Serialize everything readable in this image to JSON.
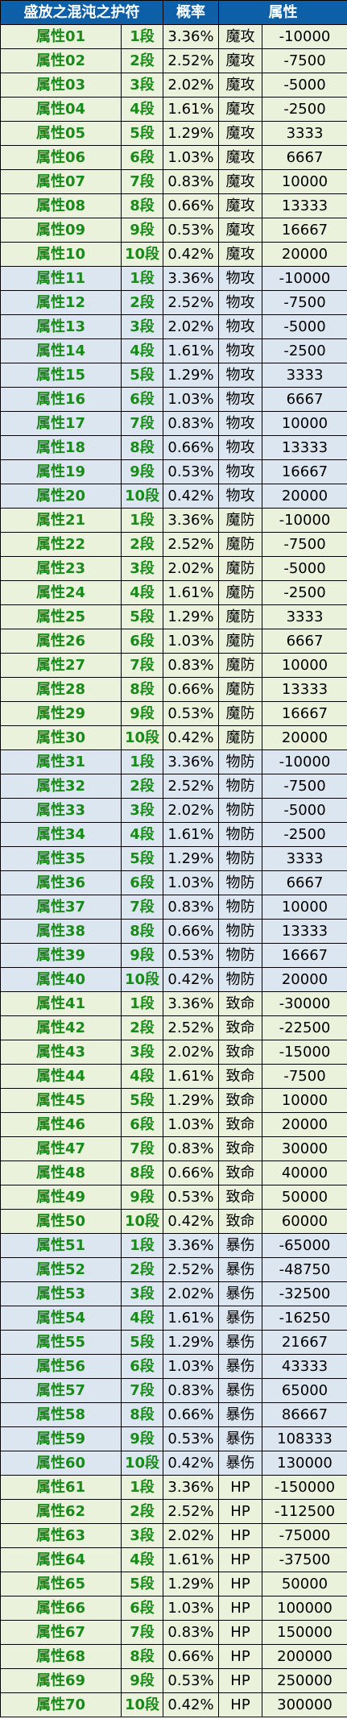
{
  "header": {
    "col_name": "盛放之混沌之护符",
    "col_prob": "概率",
    "col_attr": "属性"
  },
  "rows": [
    {
      "name": "属性01",
      "stage": "1段",
      "prob": "3.36%",
      "type": "魔攻",
      "value": "-10000"
    },
    {
      "name": "属性02",
      "stage": "2段",
      "prob": "2.52%",
      "type": "魔攻",
      "value": "-7500"
    },
    {
      "name": "属性03",
      "stage": "3段",
      "prob": "2.02%",
      "type": "魔攻",
      "value": "-5000"
    },
    {
      "name": "属性04",
      "stage": "4段",
      "prob": "1.61%",
      "type": "魔攻",
      "value": "-2500"
    },
    {
      "name": "属性05",
      "stage": "5段",
      "prob": "1.29%",
      "type": "魔攻",
      "value": "3333"
    },
    {
      "name": "属性06",
      "stage": "6段",
      "prob": "1.03%",
      "type": "魔攻",
      "value": "6667"
    },
    {
      "name": "属性07",
      "stage": "7段",
      "prob": "0.83%",
      "type": "魔攻",
      "value": "10000"
    },
    {
      "name": "属性08",
      "stage": "8段",
      "prob": "0.66%",
      "type": "魔攻",
      "value": "13333"
    },
    {
      "name": "属性09",
      "stage": "9段",
      "prob": "0.53%",
      "type": "魔攻",
      "value": "16667"
    },
    {
      "name": "属性10",
      "stage": "10段",
      "prob": "0.42%",
      "type": "魔攻",
      "value": "20000"
    },
    {
      "name": "属性11",
      "stage": "1段",
      "prob": "3.36%",
      "type": "物攻",
      "value": "-10000"
    },
    {
      "name": "属性12",
      "stage": "2段",
      "prob": "2.52%",
      "type": "物攻",
      "value": "-7500"
    },
    {
      "name": "属性13",
      "stage": "3段",
      "prob": "2.02%",
      "type": "物攻",
      "value": "-5000"
    },
    {
      "name": "属性14",
      "stage": "4段",
      "prob": "1.61%",
      "type": "物攻",
      "value": "-2500"
    },
    {
      "name": "属性15",
      "stage": "5段",
      "prob": "1.29%",
      "type": "物攻",
      "value": "3333"
    },
    {
      "name": "属性16",
      "stage": "6段",
      "prob": "1.03%",
      "type": "物攻",
      "value": "6667"
    },
    {
      "name": "属性17",
      "stage": "7段",
      "prob": "0.83%",
      "type": "物攻",
      "value": "10000"
    },
    {
      "name": "属性18",
      "stage": "8段",
      "prob": "0.66%",
      "type": "物攻",
      "value": "13333"
    },
    {
      "name": "属性19",
      "stage": "9段",
      "prob": "0.53%",
      "type": "物攻",
      "value": "16667"
    },
    {
      "name": "属性20",
      "stage": "10段",
      "prob": "0.42%",
      "type": "物攻",
      "value": "20000"
    },
    {
      "name": "属性21",
      "stage": "1段",
      "prob": "3.36%",
      "type": "魔防",
      "value": "-10000"
    },
    {
      "name": "属性22",
      "stage": "2段",
      "prob": "2.52%",
      "type": "魔防",
      "value": "-7500"
    },
    {
      "name": "属性23",
      "stage": "3段",
      "prob": "2.02%",
      "type": "魔防",
      "value": "-5000"
    },
    {
      "name": "属性24",
      "stage": "4段",
      "prob": "1.61%",
      "type": "魔防",
      "value": "-2500"
    },
    {
      "name": "属性25",
      "stage": "5段",
      "prob": "1.29%",
      "type": "魔防",
      "value": "3333"
    },
    {
      "name": "属性26",
      "stage": "6段",
      "prob": "1.03%",
      "type": "魔防",
      "value": "6667"
    },
    {
      "name": "属性27",
      "stage": "7段",
      "prob": "0.83%",
      "type": "魔防",
      "value": "10000"
    },
    {
      "name": "属性28",
      "stage": "8段",
      "prob": "0.66%",
      "type": "魔防",
      "value": "13333"
    },
    {
      "name": "属性29",
      "stage": "9段",
      "prob": "0.53%",
      "type": "魔防",
      "value": "16667"
    },
    {
      "name": "属性30",
      "stage": "10段",
      "prob": "0.42%",
      "type": "魔防",
      "value": "20000"
    },
    {
      "name": "属性31",
      "stage": "1段",
      "prob": "3.36%",
      "type": "物防",
      "value": "-10000"
    },
    {
      "name": "属性32",
      "stage": "2段",
      "prob": "2.52%",
      "type": "物防",
      "value": "-7500"
    },
    {
      "name": "属性33",
      "stage": "3段",
      "prob": "2.02%",
      "type": "物防",
      "value": "-5000"
    },
    {
      "name": "属性34",
      "stage": "4段",
      "prob": "1.61%",
      "type": "物防",
      "value": "-2500"
    },
    {
      "name": "属性35",
      "stage": "5段",
      "prob": "1.29%",
      "type": "物防",
      "value": "3333"
    },
    {
      "name": "属性36",
      "stage": "6段",
      "prob": "1.03%",
      "type": "物防",
      "value": "6667"
    },
    {
      "name": "属性37",
      "stage": "7段",
      "prob": "0.83%",
      "type": "物防",
      "value": "10000"
    },
    {
      "name": "属性38",
      "stage": "8段",
      "prob": "0.66%",
      "type": "物防",
      "value": "13333"
    },
    {
      "name": "属性39",
      "stage": "9段",
      "prob": "0.53%",
      "type": "物防",
      "value": "16667"
    },
    {
      "name": "属性40",
      "stage": "10段",
      "prob": "0.42%",
      "type": "物防",
      "value": "20000"
    },
    {
      "name": "属性41",
      "stage": "1段",
      "prob": "3.36%",
      "type": "致命",
      "value": "-30000"
    },
    {
      "name": "属性42",
      "stage": "2段",
      "prob": "2.52%",
      "type": "致命",
      "value": "-22500"
    },
    {
      "name": "属性43",
      "stage": "3段",
      "prob": "2.02%",
      "type": "致命",
      "value": "-15000"
    },
    {
      "name": "属性44",
      "stage": "4段",
      "prob": "1.61%",
      "type": "致命",
      "value": "-7500"
    },
    {
      "name": "属性45",
      "stage": "5段",
      "prob": "1.29%",
      "type": "致命",
      "value": "10000"
    },
    {
      "name": "属性46",
      "stage": "6段",
      "prob": "1.03%",
      "type": "致命",
      "value": "20000"
    },
    {
      "name": "属性47",
      "stage": "7段",
      "prob": "0.83%",
      "type": "致命",
      "value": "30000"
    },
    {
      "name": "属性48",
      "stage": "8段",
      "prob": "0.66%",
      "type": "致命",
      "value": "40000"
    },
    {
      "name": "属性49",
      "stage": "9段",
      "prob": "0.53%",
      "type": "致命",
      "value": "50000"
    },
    {
      "name": "属性50",
      "stage": "10段",
      "prob": "0.42%",
      "type": "致命",
      "value": "60000"
    },
    {
      "name": "属性51",
      "stage": "1段",
      "prob": "3.36%",
      "type": "暴伤",
      "value": "-65000"
    },
    {
      "name": "属性52",
      "stage": "2段",
      "prob": "2.52%",
      "type": "暴伤",
      "value": "-48750"
    },
    {
      "name": "属性53",
      "stage": "3段",
      "prob": "2.02%",
      "type": "暴伤",
      "value": "-32500"
    },
    {
      "name": "属性54",
      "stage": "4段",
      "prob": "1.61%",
      "type": "暴伤",
      "value": "-16250"
    },
    {
      "name": "属性55",
      "stage": "5段",
      "prob": "1.29%",
      "type": "暴伤",
      "value": "21667"
    },
    {
      "name": "属性56",
      "stage": "6段",
      "prob": "1.03%",
      "type": "暴伤",
      "value": "43333"
    },
    {
      "name": "属性57",
      "stage": "7段",
      "prob": "0.83%",
      "type": "暴伤",
      "value": "65000"
    },
    {
      "name": "属性58",
      "stage": "8段",
      "prob": "0.66%",
      "type": "暴伤",
      "value": "86667"
    },
    {
      "name": "属性59",
      "stage": "9段",
      "prob": "0.53%",
      "type": "暴伤",
      "value": "108333"
    },
    {
      "name": "属性60",
      "stage": "10段",
      "prob": "0.42%",
      "type": "暴伤",
      "value": "130000"
    },
    {
      "name": "属性61",
      "stage": "1段",
      "prob": "3.36%",
      "type": "HP",
      "value": "-150000"
    },
    {
      "name": "属性62",
      "stage": "2段",
      "prob": "2.52%",
      "type": "HP",
      "value": "-112500"
    },
    {
      "name": "属性63",
      "stage": "3段",
      "prob": "2.02%",
      "type": "HP",
      "value": "-75000"
    },
    {
      "name": "属性64",
      "stage": "4段",
      "prob": "1.61%",
      "type": "HP",
      "value": "-37500"
    },
    {
      "name": "属性65",
      "stage": "5段",
      "prob": "1.29%",
      "type": "HP",
      "value": "50000"
    },
    {
      "name": "属性66",
      "stage": "6段",
      "prob": "1.03%",
      "type": "HP",
      "value": "100000"
    },
    {
      "name": "属性67",
      "stage": "7段",
      "prob": "0.83%",
      "type": "HP",
      "value": "150000"
    },
    {
      "name": "属性68",
      "stage": "8段",
      "prob": "0.66%",
      "type": "HP",
      "value": "200000"
    },
    {
      "name": "属性69",
      "stage": "9段",
      "prob": "0.53%",
      "type": "HP",
      "value": "250000"
    },
    {
      "name": "属性70",
      "stage": "10段",
      "prob": "0.42%",
      "type": "HP",
      "value": "300000"
    }
  ]
}
